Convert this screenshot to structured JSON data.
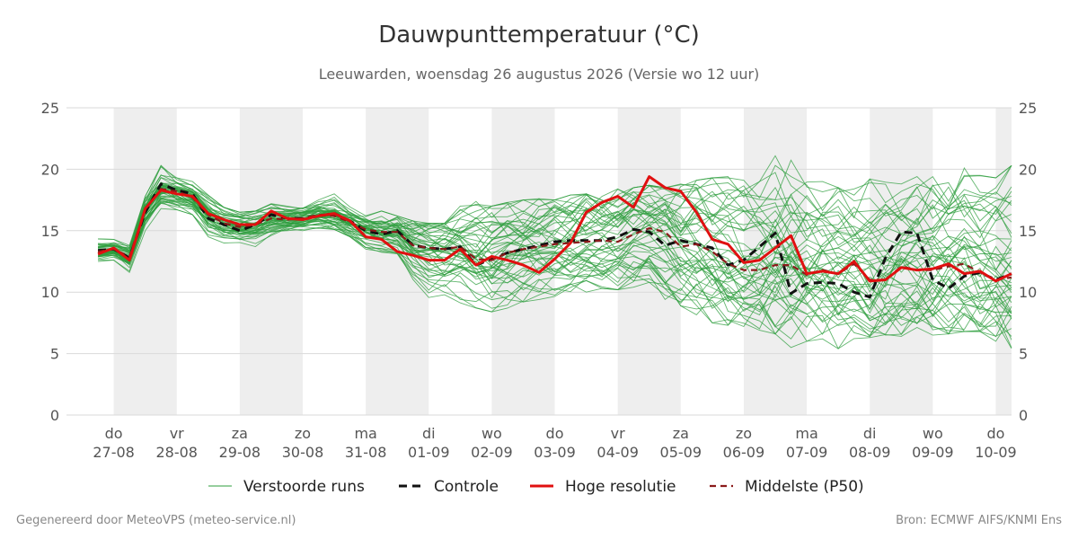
{
  "header": {
    "title": "Dauwpunttemperatuur (°C)",
    "subtitle": "Leeuwarden, woensdag 26 augustus 2026 (Versie wo 12 uur)"
  },
  "footer": {
    "left": "Gegenereerd door MeteoVPS (meteo-service.nl)",
    "right": "Bron: ECMWF AIFS/KNMI Ens"
  },
  "colors": {
    "ensemble": "#2e9e3e",
    "control": "#111111",
    "high_res": "#e01010",
    "median": "#8b1a1a",
    "weekend_shade": "#eeeeee",
    "grid": "#d9d9d9",
    "axis_text": "#555555"
  },
  "chart_data": {
    "type": "line",
    "title": "Dauwpunttemperatuur (°C)",
    "subtitle": "Leeuwarden, woensdag 26 augustus 2026 (Versie wo 12 uur)",
    "xlabel": "",
    "ylabel": "",
    "ylim": [
      0,
      25
    ],
    "y_ticks": [
      0,
      5,
      10,
      15,
      20,
      25
    ],
    "grid": true,
    "legend_position": "bottom",
    "x_unit": "days since 27-08 00h",
    "xlim": [
      -0.75,
      14.25
    ],
    "x_ticks": [
      {
        "x": 0,
        "day": "do",
        "date": "27-08"
      },
      {
        "x": 1,
        "day": "vr",
        "date": "28-08"
      },
      {
        "x": 2,
        "day": "za",
        "date": "29-08"
      },
      {
        "x": 3,
        "day": "zo",
        "date": "30-08"
      },
      {
        "x": 4,
        "day": "ma",
        "date": "31-08"
      },
      {
        "x": 5,
        "day": "di",
        "date": "01-09"
      },
      {
        "x": 6,
        "day": "wo",
        "date": "02-09"
      },
      {
        "x": 7,
        "day": "do",
        "date": "03-09"
      },
      {
        "x": 8,
        "day": "vr",
        "date": "04-09"
      },
      {
        "x": 9,
        "day": "za",
        "date": "05-09"
      },
      {
        "x": 10,
        "day": "zo",
        "date": "06-09"
      },
      {
        "x": 11,
        "day": "ma",
        "date": "07-09"
      },
      {
        "x": 12,
        "day": "di",
        "date": "08-09"
      },
      {
        "x": 13,
        "day": "wo",
        "date": "09-09"
      },
      {
        "x": 14,
        "day": "do",
        "date": "10-09"
      }
    ],
    "shaded_bands": [
      [
        0,
        1
      ],
      [
        2,
        3
      ],
      [
        4,
        5
      ],
      [
        6,
        7
      ],
      [
        8,
        9
      ],
      [
        10,
        11
      ],
      [
        12,
        13
      ],
      [
        14,
        14.25
      ]
    ],
    "x": [
      -0.25,
      0,
      0.25,
      0.5,
      0.75,
      1,
      1.25,
      1.5,
      1.75,
      2,
      2.25,
      2.5,
      2.75,
      3,
      3.25,
      3.5,
      3.75,
      4,
      4.25,
      4.5,
      4.75,
      5,
      5.25,
      5.5,
      5.75,
      6,
      6.25,
      6.5,
      6.75,
      7,
      7.25,
      7.5,
      7.75,
      8,
      8.25,
      8.5,
      8.75,
      9,
      9.25,
      9.5,
      9.75,
      10,
      10.25,
      10.5,
      10.75,
      11,
      11.25,
      11.5,
      11.75,
      12,
      12.25,
      12.5,
      12.75,
      13,
      13.25,
      13.5,
      13.75,
      14,
      14.25
    ],
    "series": [
      {
        "name": "Controle",
        "style": "dashed",
        "values": [
          13.4,
          13.5,
          12.8,
          16.5,
          18.8,
          18.3,
          18.0,
          16.0,
          15.5,
          15.0,
          15.5,
          16.3,
          16.0,
          16.0,
          16.2,
          16.4,
          15.8,
          15.0,
          14.7,
          15.0,
          13.8,
          13.6,
          13.5,
          13.7,
          12.2,
          12.7,
          13.2,
          13.5,
          13.8,
          14.1,
          14.2,
          14.2,
          14.2,
          14.5,
          15.1,
          14.9,
          13.8,
          14.2,
          13.9,
          13.6,
          12.2,
          12.6,
          13.7,
          14.8,
          9.9,
          10.7,
          10.8,
          10.7,
          10.0,
          9.6,
          12.8,
          14.9,
          14.8,
          11.0,
          10.3,
          11.3,
          11.6,
          11.0,
          11.5
        ]
      },
      {
        "name": "Hoge resolutie",
        "style": "solid",
        "values": [
          13.1,
          13.6,
          12.6,
          16.8,
          18.3,
          18.0,
          17.8,
          16.4,
          15.9,
          15.5,
          15.5,
          16.6,
          16.0,
          15.9,
          16.2,
          16.4,
          15.8,
          14.5,
          14.3,
          13.3,
          13.0,
          12.6,
          12.6,
          13.5,
          12.2,
          12.9,
          12.6,
          12.2,
          11.6,
          12.7,
          14.0,
          16.5,
          17.3,
          17.8,
          16.9,
          19.4,
          18.5,
          18.2,
          16.5,
          14.3,
          13.9,
          12.4,
          12.6,
          13.6,
          14.6,
          11.5,
          11.7,
          11.5,
          12.5,
          10.9,
          11.0,
          12.0,
          11.8,
          11.9,
          12.3,
          11.5,
          11.7,
          10.9,
          11.5
        ]
      },
      {
        "name": "Middelste (P50)",
        "style": "dashed",
        "values": [
          13.3,
          13.5,
          12.9,
          16.7,
          18.4,
          18.2,
          17.7,
          16.3,
          15.6,
          15.3,
          15.5,
          16.0,
          15.9,
          16.0,
          16.3,
          16.2,
          15.7,
          15.1,
          14.9,
          14.9,
          13.8,
          13.6,
          13.5,
          13.7,
          12.7,
          12.6,
          13.2,
          13.5,
          13.7,
          13.9,
          14.0,
          14.1,
          14.2,
          14.1,
          14.7,
          15.2,
          14.9,
          13.7,
          13.9,
          13.3,
          12.3,
          11.8,
          11.8,
          12.2,
          12.2,
          11.4,
          11.8,
          11.5,
          12.3,
          11.0,
          11.0,
          12.1,
          11.8,
          11.8,
          12.1,
          12.3,
          11.6,
          11.0,
          11.2
        ]
      }
    ],
    "ensemble": {
      "name": "Verstoorde runs",
      "member_count": 50,
      "p10": [
        12.9,
        13.0,
        12.2,
        15.8,
        17.6,
        17.4,
        16.9,
        15.3,
        14.8,
        14.5,
        14.9,
        15.3,
        15.4,
        15.5,
        15.6,
        15.5,
        15.0,
        14.3,
        14.0,
        13.8,
        12.5,
        11.5,
        11.2,
        11.0,
        10.7,
        10.2,
        10.5,
        10.8,
        10.9,
        11.0,
        11.3,
        11.5,
        11.6,
        11.5,
        11.8,
        12.0,
        11.3,
        10.8,
        10.3,
        9.9,
        9.6,
        9.3,
        9.1,
        8.9,
        8.6,
        8.4,
        8.4,
        8.3,
        8.2,
        8.3,
        8.3,
        8.2,
        8.2,
        8.1,
        8.1,
        8.1,
        8.0,
        8.0,
        8.0
      ],
      "p50": [
        13.3,
        13.5,
        12.9,
        16.7,
        18.4,
        18.2,
        17.7,
        16.3,
        15.6,
        15.3,
        15.5,
        16.0,
        15.9,
        16.0,
        16.3,
        16.2,
        15.7,
        15.1,
        14.9,
        14.9,
        13.8,
        13.6,
        13.5,
        13.7,
        12.7,
        12.6,
        13.2,
        13.5,
        13.7,
        13.9,
        14.0,
        14.1,
        14.2,
        14.1,
        14.7,
        15.2,
        14.9,
        13.7,
        13.9,
        13.3,
        12.3,
        11.8,
        11.8,
        12.2,
        12.2,
        11.4,
        11.8,
        11.5,
        12.3,
        11.0,
        11.0,
        12.1,
        11.8,
        11.8,
        12.1,
        12.3,
        11.6,
        11.0,
        11.2
      ],
      "p90": [
        13.8,
        13.9,
        13.4,
        17.3,
        19.0,
        18.8,
        18.4,
        17.1,
        16.3,
        16.0,
        16.1,
        16.6,
        16.5,
        16.5,
        16.8,
        16.9,
        16.4,
        15.9,
        15.7,
        15.7,
        15.3,
        15.2,
        15.3,
        15.4,
        15.5,
        15.6,
        15.8,
        16.0,
        16.3,
        16.5,
        16.8,
        17.0,
        17.3,
        17.5,
        17.7,
        17.9,
        17.8,
        17.6,
        17.4,
        17.2,
        17.0,
        16.8,
        16.6,
        16.5,
        16.4,
        16.3,
        16.2,
        16.1,
        16.0,
        16.0,
        16.1,
        16.3,
        16.5,
        16.7,
        16.9,
        17.0,
        17.0,
        17.0,
        17.0
      ],
      "min": [
        12.5,
        12.6,
        11.6,
        14.9,
        16.8,
        16.7,
        16.3,
        14.5,
        14.0,
        13.8,
        13.2,
        14.4,
        14.9,
        15.0,
        15.2,
        15.1,
        14.5,
        13.5,
        13.0,
        12.6,
        11.0,
        9.5,
        9.2,
        9.0,
        8.7,
        8.4,
        8.7,
        9.2,
        9.4,
        9.5,
        9.6,
        10.0,
        10.3,
        10.2,
        10.4,
        10.8,
        9.4,
        8.6,
        7.9,
        7.5,
        7.3,
        7.2,
        6.9,
        6.6,
        5.5,
        6.0,
        6.2,
        5.4,
        6.0,
        6.3,
        6.5,
        6.4,
        6.4,
        6.5,
        6.6,
        6.8,
        6.8,
        6.0,
        4.5
      ],
      "max": [
        14.4,
        14.3,
        13.8,
        17.8,
        20.4,
        19.3,
        19.0,
        17.9,
        16.9,
        16.5,
        16.6,
        17.2,
        17.0,
        17.0,
        17.5,
        18.1,
        17.0,
        16.6,
        16.6,
        16.2,
        15.8,
        15.6,
        15.6,
        17.1,
        17.4,
        17.0,
        17.3,
        17.5,
        17.6,
        17.5,
        17.9,
        18.0,
        18.2,
        18.4,
        18.5,
        18.7,
        18.5,
        18.8,
        19.1,
        19.3,
        19.4,
        19.1,
        19.0,
        21.3,
        21.2,
        20.4,
        19.0,
        18.5,
        18.4,
        19.2,
        19.0,
        18.8,
        19.4,
        19.4,
        18.9,
        20.9,
        19.5,
        19.3,
        20.3
      ]
    }
  },
  "legend": {
    "items": [
      {
        "label": "Verstoorde runs"
      },
      {
        "label": "Controle"
      },
      {
        "label": "Hoge resolutie"
      },
      {
        "label": "Middelste (P50)"
      }
    ]
  }
}
